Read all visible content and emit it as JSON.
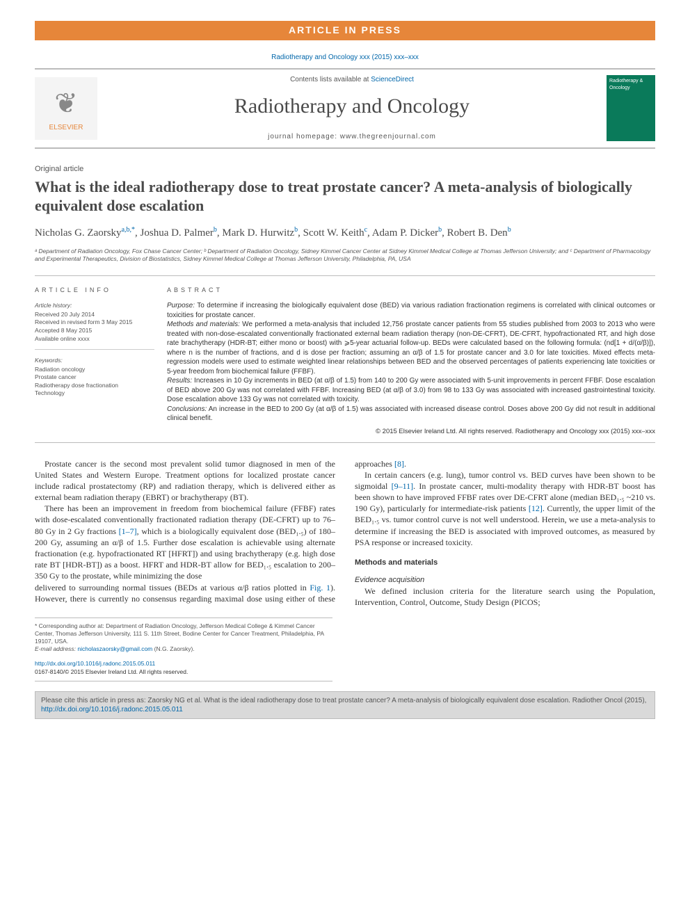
{
  "banner": {
    "text": "ARTICLE IN PRESS"
  },
  "citation_top": "Radiotherapy and Oncology xxx (2015) xxx–xxx",
  "masthead": {
    "contents_prefix": "Contents lists available at ",
    "contents_link": "ScienceDirect",
    "journal_name": "Radiotherapy and Oncology",
    "homepage_prefix": "journal homepage: ",
    "homepage_url": "www.thegreenjournal.com",
    "publisher_logo_label": "ELSEVIER",
    "cover_label": "Radiotherapy & Oncology"
  },
  "article": {
    "type": "Original article",
    "title": "What is the ideal radiotherapy dose to treat prostate cancer? A meta-analysis of biologically equivalent dose escalation",
    "authors_html": "Nicholas G. Zaorsky<sup>a,b,*</sup>, Joshua D. Palmer<sup>b</sup>, Mark D. Hurwitz<sup>b</sup>, Scott W. Keith<sup>c</sup>, Adam P. Dicker<sup>b</sup>, Robert B. Den<sup>b</sup>",
    "affiliations": "ᵃ Department of Radiation Oncology, Fox Chase Cancer Center; ᵇ Department of Radiation Oncology, Sidney Kimmel Cancer Center at Sidney Kimmel Medical College at Thomas Jefferson University; and ᶜ Department of Pharmacology and Experimental Therapeutics, Division of Biostatistics, Sidney Kimmel Medical College at Thomas Jefferson University, Philadelphia, PA, USA"
  },
  "info": {
    "heading": "ARTICLE INFO",
    "history_label": "Article history:",
    "history": [
      "Received 20 July 2014",
      "Received in revised form 3 May 2015",
      "Accepted 8 May 2015",
      "Available online xxxx"
    ],
    "keywords_label": "Keywords:",
    "keywords": [
      "Radiation oncology",
      "Prostate cancer",
      "Radiotherapy dose fractionation",
      "Technology"
    ]
  },
  "abstract": {
    "heading": "ABSTRACT",
    "purpose_label": "Purpose:",
    "purpose": " To determine if increasing the biologically equivalent dose (BED) via various radiation fractionation regimens is correlated with clinical outcomes or toxicities for prostate cancer.",
    "methods_label": "Methods and materials:",
    "methods": " We performed a meta-analysis that included 12,756 prostate cancer patients from 55 studies published from 2003 to 2013 who were treated with non-dose-escalated conventionally fractionated external beam radiation therapy (non-DE-CFRT), DE-CFRT, hypofractionated RT, and high dose rate brachytherapy (HDR-BT; either mono or boost) with ⩾5-year actuarial follow-up. BEDs were calculated based on the following formula: (nd[1 + d/(α/β)]), where n is the number of fractions, and d is dose per fraction; assuming an α/β of 1.5 for prostate cancer and 3.0 for late toxicities. Mixed effects meta-regression models were used to estimate weighted linear relationships between BED and the observed percentages of patients experiencing late toxicities or 5-year freedom from biochemical failure (FFBF).",
    "results_label": "Results:",
    "results": " Increases in 10 Gy increments in BED (at α/β of 1.5) from 140 to 200 Gy were associated with 5-unit improvements in percent FFBF. Dose escalation of BED above 200 Gy was not correlated with FFBF. Increasing BED (at α/β of 3.0) from 98 to 133 Gy was associated with increased gastrointestinal toxicity. Dose escalation above 133 Gy was not correlated with toxicity.",
    "conclusions_label": "Conclusions:",
    "conclusions": " An increase in the BED to 200 Gy (at α/β of 1.5) was associated with increased disease control. Doses above 200 Gy did not result in additional clinical benefit.",
    "copyright": "© 2015 Elsevier Ireland Ltd. All rights reserved. Radiotherapy and Oncology xxx (2015) xxx–xxx"
  },
  "body": {
    "p1": "Prostate cancer is the second most prevalent solid tumor diagnosed in men of the United States and Western Europe. Treatment options for localized prostate cancer include radical prostatectomy (RP) and radiation therapy, which is delivered either as external beam radiation therapy (EBRT) or brachytherapy (BT).",
    "p2a": "There has been an improvement in freedom from biochemical failure (FFBF) rates with dose-escalated conventionally fractionated radiation therapy (DE-CFRT) up to 76–80 Gy in 2 Gy fractions ",
    "p2_link": "[1–7]",
    "p2b": ", which is a biologically equivalent dose (BED₁.₅) of 180–200 Gy, assuming an α/β of 1.5. Further dose escalation is achievable using alternate fractionation (e.g. hypofractionated RT [HFRT]) and using brachytherapy (e.g. high dose rate BT [HDR-BT]) as a boost. HFRT and HDR-BT allow for BED₁.₅ escalation to 200–350 Gy to the prostate, while minimizing the dose",
    "p3a": "delivered to surrounding normal tissues (BEDs at various α/β ratios plotted in ",
    "p3_link1": "Fig. 1",
    "p3b": "). However, there is currently no consensus regarding maximal dose using either of these approaches ",
    "p3_link2": "[8]",
    "p3c": ".",
    "p4a": "In certain cancers (e.g. lung), tumor control vs. BED curves have been shown to be sigmoidal ",
    "p4_link1": "[9–11]",
    "p4b": ". In prostate cancer, multi-modality therapy with HDR-BT boost has been shown to have improved FFBF rates over DE-CFRT alone (median BED₁.₅ ~210 vs. 190 Gy), particularly for intermediate-risk patients ",
    "p4_link2": "[12]",
    "p4c": ". Currently, the upper limit of the BED₁.₅ vs. tumor control curve is not well understood. Herein, we use a meta-analysis to determine if increasing the BED is associated with improved outcomes, as measured by PSA response or increased toxicity.",
    "methods_heading": "Methods and materials",
    "evidence_heading": "Evidence acquisition",
    "p5": "We defined inclusion criteria for the literature search using the Population, Intervention, Control, Outcome, Study Design (PICOS;"
  },
  "footnotes": {
    "corr_label": "* Corresponding author at: ",
    "corr_text": "Department of Radiation Oncology, Jefferson Medical College & Kimmel Cancer Center, Thomas Jefferson University, 111 S. 11th Street, Bodine Center for Cancer Treatment, Philadelphia, PA 19107, USA.",
    "email_label": "E-mail address: ",
    "email": "nicholaszaorsky@gmail.com",
    "email_suffix": " (N.G. Zaorsky)."
  },
  "doi": {
    "url": "http://dx.doi.org/10.1016/j.radonc.2015.05.011",
    "rights": "0167-8140/© 2015 Elsevier Ireland Ltd. All rights reserved."
  },
  "cite_footer": {
    "text": "Please cite this article in press as: Zaorsky NG et al. What is the ideal radiotherapy dose to treat prostate cancer? A meta-analysis of biologically equivalent dose escalation. Radiother Oncol (2015), ",
    "link": "http://dx.doi.org/10.1016/j.radonc.2015.05.011"
  },
  "colors": {
    "accent_orange": "#e6863a",
    "link_blue": "#0066aa",
    "rule_gray": "#bbbbbb",
    "text_gray": "#555555",
    "cover_green": "#0a7a5a",
    "footer_bg": "#d9d9d9"
  }
}
